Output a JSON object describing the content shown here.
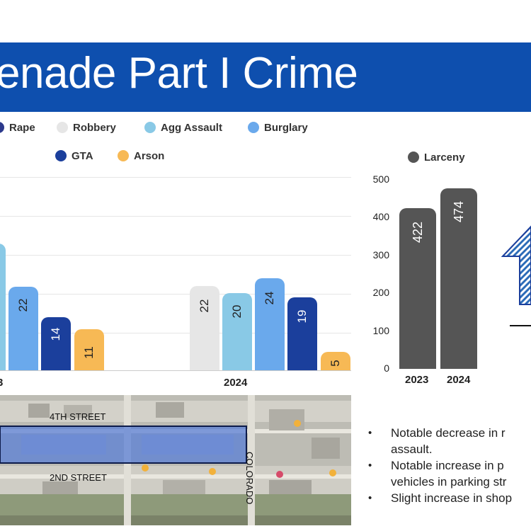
{
  "banner": {
    "title": "enade Part I Crime"
  },
  "legend_left": [
    {
      "label": "Rape",
      "color": "#2c3a8c"
    },
    {
      "label": "Robbery",
      "color": "#e6e6e6"
    },
    {
      "label": "Agg Assault",
      "color": "#89c9e6"
    },
    {
      "label": "Burglary",
      "color": "#6aa9ec"
    },
    {
      "label": "GTA",
      "color": "#1b3f9c"
    },
    {
      "label": "Arson",
      "color": "#f7b955"
    }
  ],
  "legend_right": {
    "label": "Larceny",
    "color": "#555555"
  },
  "chart_data": [
    {
      "type": "bar",
      "categories": [
        "2023",
        "2024"
      ],
      "series": [
        {
          "name": "Robbery",
          "values": [
            null,
            22
          ]
        },
        {
          "name": "Agg Assault",
          "values": [
            null,
            20
          ]
        },
        {
          "name": "Burglary",
          "values": [
            22,
            24
          ]
        },
        {
          "name": "GTA",
          "values": [
            14,
            19
          ]
        },
        {
          "name": "Arson",
          "values": [
            11,
            5
          ]
        }
      ],
      "x_tick_labels": [
        "3",
        "2024"
      ],
      "grid": true
    },
    {
      "type": "bar",
      "categories": [
        "2023",
        "2024"
      ],
      "series": [
        {
          "name": "Larceny",
          "values": [
            422,
            474
          ]
        }
      ],
      "ylim": [
        0,
        500
      ],
      "yticks": [
        "500",
        "400",
        "300",
        "200",
        "100",
        "0"
      ],
      "grid": false
    }
  ],
  "map": {
    "labels": {
      "street_top": "4TH STREET",
      "street_bottom": "2ND STREET",
      "street_side": "COLORADO"
    }
  },
  "bullets": [
    "Notable decrease in r",
    "assault.",
    "Notable increase in p",
    "vehicles in parking str",
    "Slight increase in shop"
  ]
}
